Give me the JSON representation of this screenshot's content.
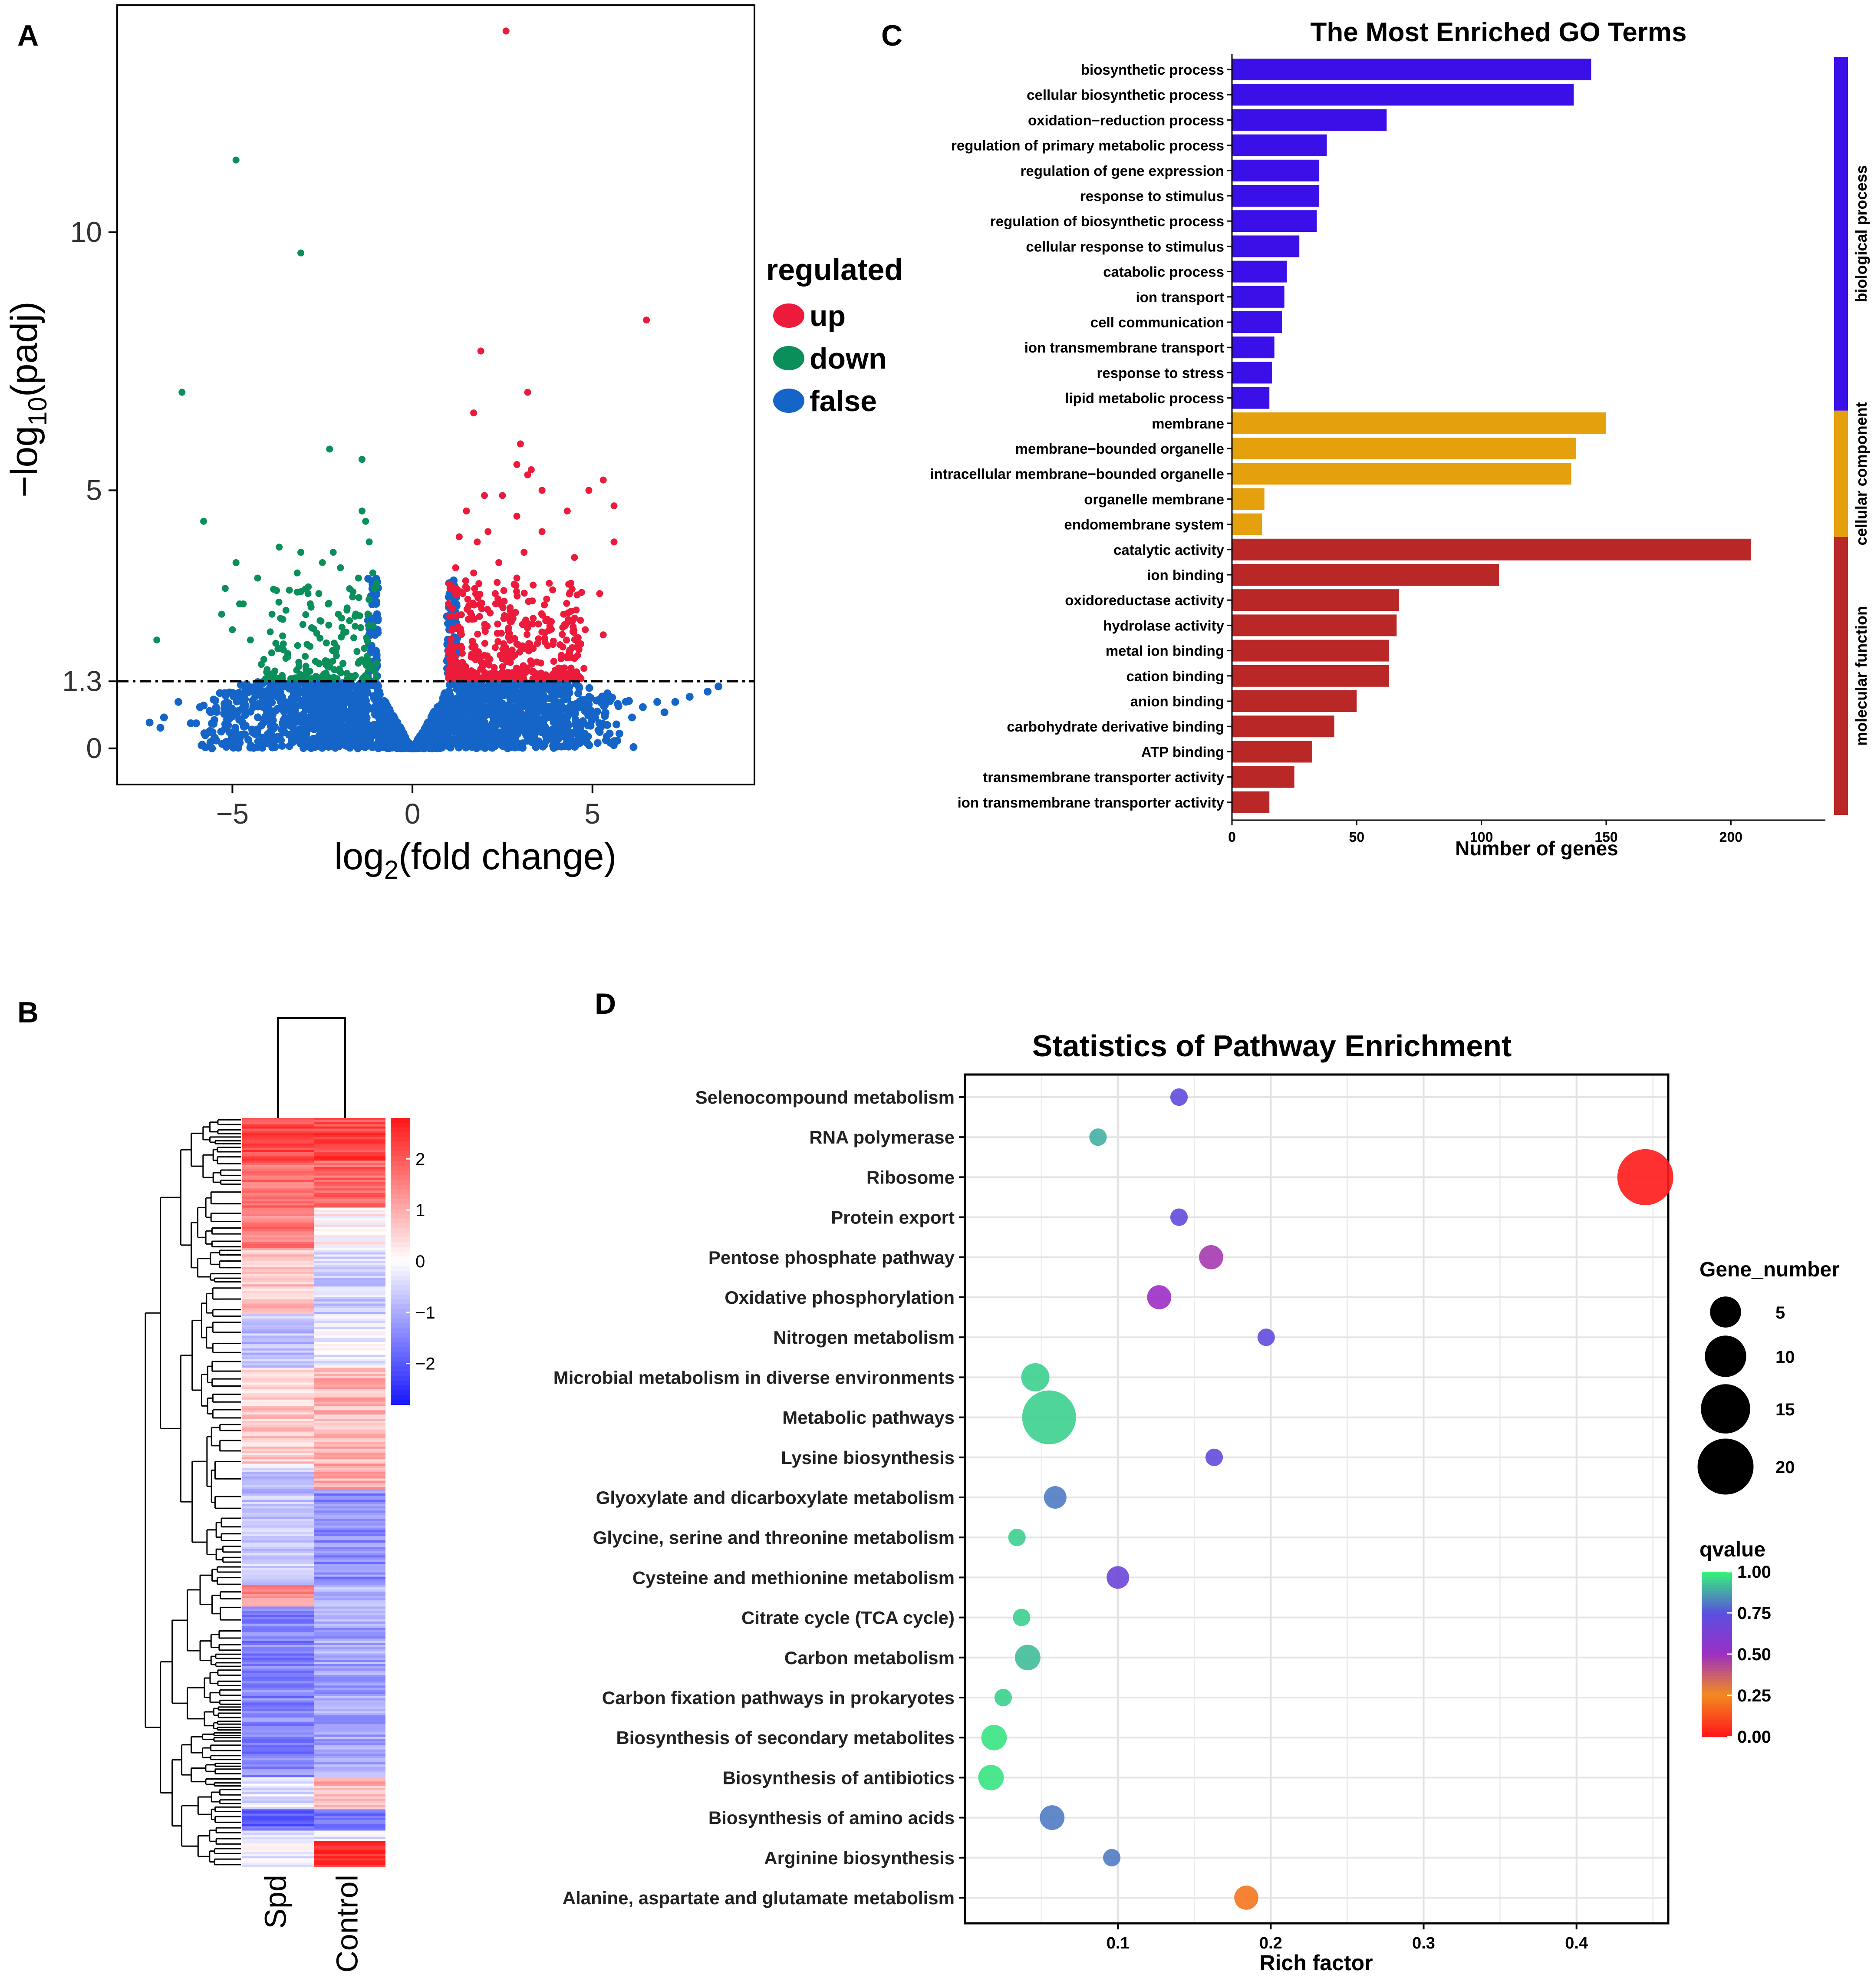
{
  "panel_labels": {
    "a": "A",
    "b": "B",
    "c": "C",
    "d": "D"
  },
  "chart_data": [
    {
      "id": "A",
      "type": "scatter",
      "title": "",
      "xlabel_main": "log",
      "xlabel_sub": "2",
      "xlabel_tail": "(fold change)",
      "ylabel_main": "−log",
      "ylabel_sub": "10",
      "ylabel_tail": "(padj)",
      "xlim": [
        -8.2,
        9.5
      ],
      "ylim": [
        -0.7,
        14.4
      ],
      "xticks": [
        {
          "v": -5,
          "label": "−5"
        },
        {
          "v": 0,
          "label": "0"
        },
        {
          "v": 5,
          "label": "5"
        }
      ],
      "yticks": [
        {
          "v": 0,
          "label": "0"
        },
        {
          "v": 1.3,
          "label": "1.3"
        },
        {
          "v": 5,
          "label": "5"
        },
        {
          "v": 10,
          "label": "10"
        }
      ],
      "threshold": 1.3,
      "legend": {
        "title": "regulated",
        "items": [
          {
            "label": "up",
            "color": "#ec1a3b"
          },
          {
            "label": "down",
            "color": "#0a8f5a"
          },
          {
            "label": "false",
            "color": "#1565c8"
          }
        ]
      },
      "up": [
        [
          2.6,
          13.9
        ],
        [
          6.5,
          8.3
        ],
        [
          1.9,
          7.7
        ],
        [
          3.2,
          6.9
        ],
        [
          1.7,
          6.5
        ],
        [
          3.0,
          5.9
        ],
        [
          2.9,
          5.5
        ],
        [
          3.2,
          5.3
        ],
        [
          3.3,
          5.4
        ],
        [
          5.3,
          5.2
        ],
        [
          4.9,
          5.0
        ],
        [
          2.0,
          4.9
        ],
        [
          2.5,
          4.9
        ],
        [
          3.6,
          5.0
        ],
        [
          5.6,
          4.7
        ],
        [
          1.5,
          4.6
        ],
        [
          2.9,
          4.5
        ],
        [
          4.3,
          4.6
        ],
        [
          5.6,
          4.0
        ],
        [
          3.6,
          4.2
        ],
        [
          2.1,
          4.2
        ],
        [
          1.3,
          4.1
        ],
        [
          1.8,
          4.0
        ],
        [
          3.1,
          3.8
        ],
        [
          4.5,
          3.7
        ],
        [
          2.4,
          3.6
        ],
        [
          1.2,
          3.5
        ],
        [
          1.7,
          3.4
        ],
        [
          2.9,
          3.3
        ],
        [
          3.8,
          3.2
        ],
        [
          4.4,
          3.2
        ],
        [
          5.2,
          3.0
        ],
        [
          1.4,
          3.0
        ],
        [
          2.3,
          3.0
        ],
        [
          4.2,
          2.6
        ],
        [
          4.8,
          2.3
        ],
        [
          5.3,
          2.2
        ]
      ],
      "down": [
        [
          -4.9,
          11.4
        ],
        [
          -3.1,
          9.6
        ],
        [
          -6.4,
          6.9
        ],
        [
          -2.3,
          5.8
        ],
        [
          -1.4,
          5.6
        ],
        [
          -5.8,
          4.4
        ],
        [
          -1.3,
          4.4
        ],
        [
          -1.4,
          4.6
        ],
        [
          -1.2,
          4.0
        ],
        [
          -3.7,
          3.9
        ],
        [
          -3.1,
          3.8
        ],
        [
          -2.2,
          3.8
        ],
        [
          -4.9,
          3.6
        ],
        [
          -2.5,
          3.6
        ],
        [
          -2.0,
          3.5
        ],
        [
          -3.2,
          3.4
        ],
        [
          -1.1,
          3.4
        ],
        [
          -5.2,
          3.1
        ],
        [
          -4.3,
          3.3
        ],
        [
          -1.5,
          3.3
        ],
        [
          -1.0,
          3.2
        ],
        [
          -4.8,
          2.8
        ],
        [
          -3.9,
          2.6
        ],
        [
          -2.9,
          3.0
        ],
        [
          -3.6,
          2.5
        ],
        [
          -7.1,
          2.1
        ],
        [
          -5.0,
          2.3
        ],
        [
          -4.5,
          2.1
        ],
        [
          -5.3,
          2.6
        ],
        [
          -2.6,
          3.0
        ],
        [
          -4.7,
          2.8
        ]
      ],
      "false_extra": [
        [
          8.5,
          1.2
        ],
        [
          8.2,
          1.1
        ],
        [
          7.7,
          1.0
        ],
        [
          7.3,
          0.9
        ],
        [
          6.8,
          0.9
        ],
        [
          6.4,
          0.8
        ],
        [
          -6.5,
          0.9
        ],
        [
          -6.9,
          0.6
        ],
        [
          -7.3,
          0.5
        ],
        [
          -5.9,
          0.8
        ],
        [
          -5.6,
          0.7
        ],
        [
          -7.0,
          0.4
        ],
        [
          6.1,
          0.6
        ],
        [
          7.0,
          0.7
        ]
      ]
    },
    {
      "id": "B",
      "type": "heatmap",
      "columns": [
        "Spd",
        "Control"
      ],
      "color_scale": {
        "min": -2.8,
        "max": 2.8,
        "low": "#1a1aff",
        "mid": "#ffffff",
        "high": "#ff1a1a"
      },
      "colorbar_ticks": [
        {
          "v": 2,
          "label": "2"
        },
        {
          "v": 1,
          "label": "1"
        },
        {
          "v": 0,
          "label": "0"
        },
        {
          "v": -1,
          "label": "−1"
        },
        {
          "v": -2,
          "label": "−2"
        }
      ],
      "blocks": [
        {
          "n": 20,
          "spd": 2.3,
          "ctl": 2.3
        },
        {
          "n": 22,
          "spd": 1.8,
          "ctl": 1.9
        },
        {
          "n": 20,
          "spd": 1.6,
          "ctl": 0.2
        },
        {
          "n": 30,
          "spd": 0.7,
          "ctl": -0.6
        },
        {
          "n": 25,
          "spd": -0.7,
          "ctl": -0.2
        },
        {
          "n": 45,
          "spd": 0.6,
          "ctl": 0.9
        },
        {
          "n": 12,
          "spd": -0.6,
          "ctl": 1.0
        },
        {
          "n": 45,
          "spd": -0.7,
          "ctl": -1.4
        },
        {
          "n": 10,
          "spd": 1.4,
          "ctl": -0.9
        },
        {
          "n": 80,
          "spd": -1.5,
          "ctl": -1.1
        },
        {
          "n": 15,
          "spd": -0.3,
          "ctl": 0.9
        },
        {
          "n": 10,
          "spd": -1.9,
          "ctl": -1.6
        },
        {
          "n": 5,
          "spd": -0.5,
          "ctl": -0.4
        },
        {
          "n": 12,
          "spd": -0.2,
          "ctl": 2.7
        }
      ]
    },
    {
      "id": "C",
      "type": "bar",
      "orientation": "horizontal",
      "title": "The Most Enriched GO Terms",
      "xlabel": "Number of genes",
      "xticks": [
        0,
        50,
        100,
        150,
        200
      ],
      "xlim": [
        0,
        237
      ],
      "groups": [
        {
          "name": "biological process",
          "color": "#3a0fe8"
        },
        {
          "name": "cellular component",
          "color": "#e5a00d"
        },
        {
          "name": "molecular function",
          "color": "#b92727"
        }
      ],
      "categories": [
        "biosynthetic process",
        "cellular biosynthetic process",
        "oxidation−reduction process",
        "regulation of primary metabolic process",
        "regulation of gene expression",
        "response to stimulus",
        "regulation of biosynthetic process",
        "cellular response to stimulus",
        "catabolic process",
        "ion transport",
        "cell communication",
        "ion transmembrane transport",
        "response to stress",
        "lipid metabolic process",
        "membrane",
        "membrane−bounded organelle",
        "intracellular membrane−bounded organelle",
        "organelle membrane",
        "endomembrane system",
        "catalytic activity",
        "ion binding",
        "oxidoreductase activity",
        "hydrolase activity",
        "metal ion binding",
        "cation binding",
        "anion binding",
        "carbohydrate derivative binding",
        "ATP binding",
        "transmembrane transporter activity",
        "ion transmembrane transporter activity"
      ],
      "values": [
        144,
        137,
        62,
        38,
        35,
        35,
        34,
        27,
        22,
        21,
        20,
        17,
        16,
        15,
        150,
        138,
        136,
        13,
        12,
        208,
        107,
        67,
        66,
        63,
        63,
        50,
        41,
        32,
        25,
        15
      ],
      "group_index": [
        0,
        0,
        0,
        0,
        0,
        0,
        0,
        0,
        0,
        0,
        0,
        0,
        0,
        0,
        1,
        1,
        1,
        1,
        1,
        2,
        2,
        2,
        2,
        2,
        2,
        2,
        2,
        2,
        2,
        2
      ]
    },
    {
      "id": "D",
      "type": "scatter",
      "title": "Statistics of Pathway Enrichment",
      "xlabel": "Rich factor",
      "xticks": [
        {
          "v": 0.1,
          "label": "0.1"
        },
        {
          "v": 0.2,
          "label": "0.2"
        },
        {
          "v": 0.3,
          "label": "0.3"
        },
        {
          "v": 0.4,
          "label": "0.4"
        }
      ],
      "xlim": [
        0,
        0.46
      ],
      "categories": [
        "Selenocompound metabolism",
        "RNA polymerase",
        "Ribosome",
        "Protein export",
        "Pentose phosphate pathway",
        "Oxidative phosphorylation",
        "Nitrogen metabolism",
        "Microbial metabolism in diverse environments",
        "Metabolic pathways",
        "Lysine biosynthesis",
        "Glyoxylate and dicarboxylate metabolism",
        "Glycine, serine and threonine metabolism",
        "Cysteine and methionine metabolism",
        "Citrate cycle (TCA cycle)",
        "Carbon metabolism",
        "Carbon fixation pathways in prokaryotes",
        "Biosynthesis of secondary metabolites",
        "Biosynthesis of antibiotics",
        "Biosynthesis of amino acids",
        "Arginine biosynthesis",
        "Alanine, aspartate and glutamate metabolism"
      ],
      "rich_factor": [
        0.14,
        0.087,
        0.445,
        0.14,
        0.161,
        0.127,
        0.197,
        0.046,
        0.055,
        0.163,
        0.059,
        0.034,
        0.1,
        0.037,
        0.041,
        0.025,
        0.019,
        0.017,
        0.057,
        0.096,
        0.184
      ],
      "gene_number": [
        1.2,
        1.2,
        23,
        1.2,
        3,
        3,
        1.2,
        4.5,
        21,
        1.2,
        2.5,
        1.2,
        2.5,
        1.2,
        3.5,
        1.2,
        3.5,
        3.5,
        3.2,
        1.2,
        3
      ],
      "qvalue": [
        0.72,
        0.9,
        0.0,
        0.72,
        0.47,
        0.5,
        0.72,
        0.95,
        0.95,
        0.72,
        0.82,
        0.95,
        0.68,
        0.95,
        0.92,
        0.95,
        0.98,
        0.98,
        0.82,
        0.82,
        0.2
      ],
      "size_legend": {
        "title": "Gene_number",
        "items": [
          5,
          10,
          15,
          20
        ]
      },
      "color_legend": {
        "title": "qvalue",
        "ticks": [
          {
            "v": 1.0,
            "label": "1.00"
          },
          {
            "v": 0.75,
            "label": "0.75"
          },
          {
            "v": 0.5,
            "label": "0.50"
          },
          {
            "v": 0.25,
            "label": "0.25"
          },
          {
            "v": 0.0,
            "label": "0.00"
          }
        ],
        "stops": [
          {
            "v": 0.0,
            "color": "#ff1a1a"
          },
          {
            "v": 0.25,
            "color": "#f28b1f"
          },
          {
            "v": 0.5,
            "color": "#9c2fc4"
          },
          {
            "v": 0.75,
            "color": "#5a4fe0"
          },
          {
            "v": 1.0,
            "color": "#35f07a"
          }
        ]
      }
    }
  ]
}
